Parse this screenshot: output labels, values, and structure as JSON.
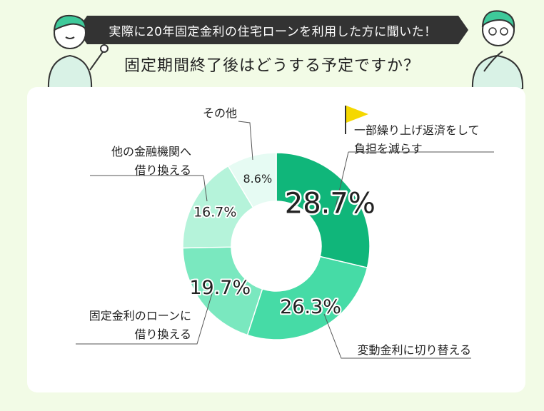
{
  "header": {
    "banner": "実際に20年固定金利の住宅ローンを利用した方に聞いた！",
    "question": "固定期間終了後はどうする予定ですか？"
  },
  "chart_data": {
    "type": "pie",
    "donut": true,
    "slices": [
      {
        "label_lines": [
          "一部繰り上げ返済をして",
          "負担を減らす"
        ],
        "value": 28.7,
        "value_label": "28.7%",
        "color": "#10b67a",
        "highlight": true
      },
      {
        "label_lines": [
          "変動金利に切り替える"
        ],
        "value": 26.3,
        "value_label": "26.3%",
        "color": "#46dba6"
      },
      {
        "label_lines": [
          "固定金利のローンに",
          "借り換える"
        ],
        "value": 19.7,
        "value_label": "19.7%",
        "color": "#7ae8bf"
      },
      {
        "label_lines": [
          "他の金融機関へ",
          "借り換える"
        ],
        "value": 16.7,
        "value_label": "16.7%",
        "color": "#b5f3da"
      },
      {
        "label_lines": [
          "その他"
        ],
        "value": 8.6,
        "value_label": "8.6%",
        "color": "#e6fbf3"
      }
    ]
  }
}
